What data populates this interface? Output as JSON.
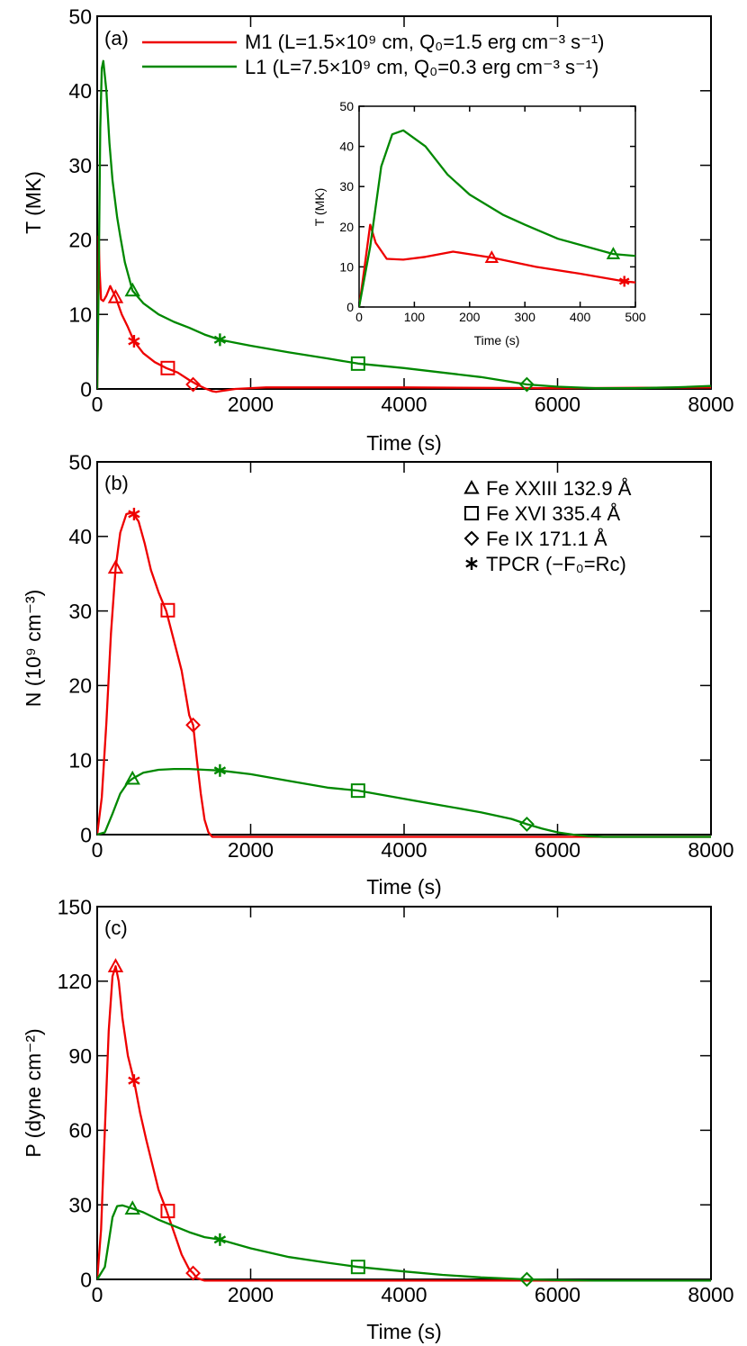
{
  "colors": {
    "M1": "#ee0000",
    "L1": "#008800"
  },
  "marker_legend": [
    {
      "symbol": "triangle",
      "label": "Fe XXIII 132.9 Å"
    },
    {
      "symbol": "square",
      "label": "Fe XVI 335.4 Å"
    },
    {
      "symbol": "diamond",
      "label": "Fe IX 171.1 Å"
    },
    {
      "symbol": "asterisk",
      "label": "TPCR (−F₀=Rc)"
    }
  ],
  "chart_data": [
    {
      "type": "line",
      "panel_label": "(a)",
      "xlabel": "Time (s)",
      "ylabel": "T (MK)",
      "xlim": [
        0,
        8000
      ],
      "ylim": [
        0,
        50
      ],
      "xticks": [
        0,
        2000,
        4000,
        6000,
        8000
      ],
      "yticks": [
        0,
        10,
        20,
        30,
        40,
        50
      ],
      "legend_placement": "top-right",
      "series": [
        {
          "id": "M1",
          "name": "M1 (L=1.5×10⁹ cm, Q₀=1.5 erg cm⁻³ s⁻¹)",
          "x": [
            0,
            10,
            20,
            30,
            50,
            80,
            120,
            170,
            240,
            320,
            400,
            480,
            600,
            750,
            900,
            1050,
            1200,
            1300,
            1400,
            1500,
            1550,
            1600,
            1800,
            2200,
            3000,
            4000,
            6000,
            8000
          ],
          "y": [
            0,
            10,
            20.5,
            16,
            12,
            11.8,
            12.5,
            13.8,
            12.3,
            10,
            8.3,
            6.4,
            4.8,
            3.6,
            2.8,
            2.2,
            1.2,
            0.6,
            0.1,
            -0.3,
            -0.4,
            -0.3,
            0,
            0.2,
            0.2,
            0.2,
            0.1,
            0.2
          ],
          "markers": [
            {
              "symbol": "triangle",
              "x": 240,
              "y": 12.3
            },
            {
              "symbol": "asterisk",
              "x": 480,
              "y": 6.4
            },
            {
              "symbol": "square",
              "x": 920,
              "y": 2.8
            },
            {
              "symbol": "diamond",
              "x": 1250,
              "y": 0.6
            }
          ]
        },
        {
          "id": "L1",
          "name": "L1  (L=7.5×10⁹ cm, Q₀=0.3 erg cm⁻³ s⁻¹)",
          "x": [
            0,
            20,
            40,
            60,
            80,
            120,
            160,
            200,
            260,
            300,
            360,
            460,
            600,
            800,
            1000,
            1200,
            1400,
            1600,
            2000,
            2500,
            3000,
            3400,
            4000,
            4500,
            5000,
            5600,
            6000,
            6500,
            7000,
            7500,
            8000
          ],
          "y": [
            0,
            15,
            35,
            43,
            44,
            40,
            33,
            28,
            23,
            20.5,
            17,
            13.2,
            11.5,
            10,
            9,
            8.2,
            7.3,
            6.6,
            5.8,
            4.9,
            4.1,
            3.4,
            2.8,
            2.2,
            1.6,
            0.6,
            0.3,
            0.1,
            0.1,
            0.2,
            0.4
          ],
          "markers": [
            {
              "symbol": "triangle",
              "x": 460,
              "y": 13.2
            },
            {
              "symbol": "asterisk",
              "x": 1600,
              "y": 6.6
            },
            {
              "symbol": "square",
              "x": 3400,
              "y": 3.4
            },
            {
              "symbol": "diamond",
              "x": 5600,
              "y": 0.6
            }
          ]
        }
      ],
      "inset": {
        "xlabel": "Time (s)",
        "ylabel": "T (MK)",
        "xlim": [
          0,
          500
        ],
        "ylim": [
          0,
          50
        ],
        "xticks": [
          0,
          100,
          200,
          300,
          400,
          500
        ],
        "yticks": [
          0,
          10,
          20,
          30,
          40,
          50
        ]
      }
    },
    {
      "type": "line",
      "panel_label": "(b)",
      "xlabel": "Time (s)",
      "ylabel": "N (10⁹ cm⁻³)",
      "xlim": [
        0,
        8000
      ],
      "ylim": [
        0,
        50
      ],
      "xticks": [
        0,
        2000,
        4000,
        6000,
        8000
      ],
      "yticks": [
        0,
        10,
        20,
        30,
        40,
        50
      ],
      "legend_placement": "top-right",
      "series": [
        {
          "id": "M1",
          "x": [
            0,
            60,
            120,
            180,
            240,
            300,
            380,
            460,
            540,
            620,
            700,
            800,
            900,
            1000,
            1100,
            1200,
            1250,
            1300,
            1350,
            1400,
            1450,
            1500,
            1600,
            2000,
            4000,
            8000
          ],
          "y": [
            0,
            5,
            15,
            27,
            35.8,
            40.5,
            43,
            43.2,
            42,
            39,
            35.5,
            32.5,
            30,
            26,
            22,
            16,
            14.7,
            10,
            5.5,
            2,
            0.3,
            -0.3,
            -0.3,
            -0.3,
            -0.3,
            -0.3
          ],
          "markers": [
            {
              "symbol": "triangle",
              "x": 240,
              "y": 35.8
            },
            {
              "symbol": "asterisk",
              "x": 480,
              "y": 43
            },
            {
              "symbol": "square",
              "x": 920,
              "y": 30.1
            },
            {
              "symbol": "diamond",
              "x": 1250,
              "y": 14.7
            }
          ]
        },
        {
          "id": "L1",
          "x": [
            0,
            100,
            200,
            300,
            400,
            460,
            600,
            800,
            1000,
            1200,
            1400,
            1600,
            2000,
            2500,
            3000,
            3400,
            4000,
            4500,
            5000,
            5400,
            5600,
            5800,
            6000,
            6200,
            6400,
            6600,
            7000,
            7500,
            8000
          ],
          "y": [
            0,
            0.3,
            2.8,
            5.5,
            7,
            7.5,
            8.3,
            8.7,
            8.8,
            8.8,
            8.7,
            8.6,
            8.1,
            7.2,
            6.3,
            5.9,
            4.8,
            3.9,
            3,
            2.1,
            1.4,
            0.8,
            0.3,
            0,
            -0.2,
            -0.3,
            -0.3,
            -0.3,
            -0.3
          ],
          "markers": [
            {
              "symbol": "triangle",
              "x": 460,
              "y": 7.5
            },
            {
              "symbol": "asterisk",
              "x": 1600,
              "y": 8.6
            },
            {
              "symbol": "square",
              "x": 3400,
              "y": 5.9
            },
            {
              "symbol": "diamond",
              "x": 5600,
              "y": 1.4
            }
          ]
        }
      ]
    },
    {
      "type": "line",
      "panel_label": "(c)",
      "xlabel": "Time (s)",
      "ylabel": "P (dyne cm⁻²)",
      "xlim": [
        0,
        8000
      ],
      "ylim": [
        0,
        150
      ],
      "xticks": [
        0,
        2000,
        4000,
        6000,
        8000
      ],
      "yticks": [
        0,
        30,
        60,
        90,
        120,
        150
      ],
      "series": [
        {
          "id": "M1",
          "x": [
            0,
            50,
            100,
            150,
            200,
            240,
            280,
            330,
            400,
            480,
            560,
            640,
            720,
            800,
            900,
            1000,
            1100,
            1200,
            1250,
            1300,
            1400,
            1600,
            2000,
            4000,
            8000
          ],
          "y": [
            0,
            20,
            60,
            100,
            122,
            126,
            120,
            105,
            90,
            80,
            67,
            56,
            46,
            36,
            28,
            19,
            10,
            4,
            2.5,
            0.5,
            -0.5,
            -0.5,
            -0.5,
            -0.5,
            -0.5
          ],
          "markers": [
            {
              "symbol": "triangle",
              "x": 240,
              "y": 126
            },
            {
              "symbol": "asterisk",
              "x": 480,
              "y": 80
            },
            {
              "symbol": "square",
              "x": 920,
              "y": 27.5
            },
            {
              "symbol": "diamond",
              "x": 1250,
              "y": 2.5
            }
          ]
        },
        {
          "id": "L1",
          "x": [
            0,
            100,
            150,
            200,
            260,
            330,
            460,
            600,
            800,
            1000,
            1200,
            1400,
            1600,
            2000,
            2500,
            3000,
            3400,
            4000,
            4500,
            5000,
            5600,
            6000,
            6500,
            7000,
            8000
          ],
          "y": [
            0,
            5,
            15,
            25,
            29.5,
            29.8,
            28.5,
            27,
            24,
            21.5,
            19,
            17,
            16,
            12.5,
            9,
            6.7,
            5,
            3.2,
            1.8,
            0.8,
            0,
            -0.3,
            -0.5,
            -0.5,
            -0.5
          ],
          "markers": [
            {
              "symbol": "triangle",
              "x": 460,
              "y": 28.5
            },
            {
              "symbol": "asterisk",
              "x": 1600,
              "y": 16
            },
            {
              "symbol": "square",
              "x": 3400,
              "y": 5
            },
            {
              "symbol": "diamond",
              "x": 5600,
              "y": 0
            }
          ]
        }
      ]
    }
  ]
}
